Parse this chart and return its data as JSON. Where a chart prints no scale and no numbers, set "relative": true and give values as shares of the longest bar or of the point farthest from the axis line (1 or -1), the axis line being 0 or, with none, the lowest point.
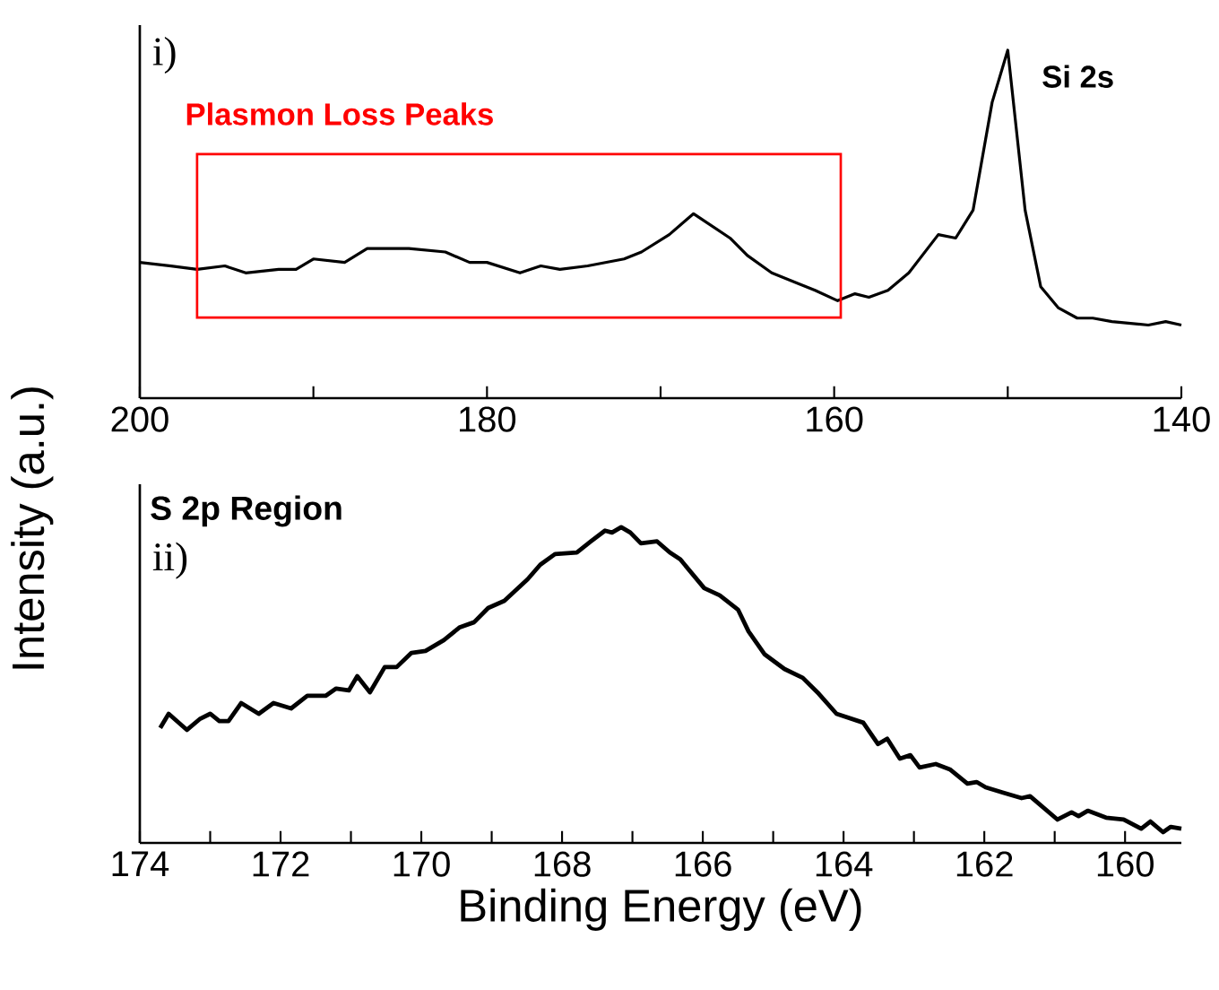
{
  "chart_data": [
    {
      "type": "line",
      "title": "i)",
      "ylabel": "Intensity (a.u.)",
      "relative": true,
      "color": "#000000",
      "tick_labels": "x",
      "annotations": [
        {
          "text": "Si 2s",
          "x": 150,
          "y": 1
        },
        "Plasmon Loss Peaks"
      ],
      "xlim": [
        200,
        140
      ],
      "xticks": [
        200,
        {
          "value": 190,
          "label": null
        },
        180,
        {
          "value": 170,
          "label": null
        },
        160,
        {
          "value": 150,
          "label": null
        },
        140
      ],
      "x": [
        200.0,
        198.2,
        196.7,
        195.1,
        193.9,
        192.0,
        191.0,
        190.0,
        188.2,
        186.9,
        184.5,
        182.4,
        181.0,
        180.0,
        178.1,
        176.9,
        175.8,
        174.2,
        172.1,
        171.1,
        169.5,
        168.1,
        166.0,
        165.0,
        163.6,
        162.1,
        161.1,
        159.8,
        158.8,
        158.0,
        156.9,
        155.7,
        154.0,
        153.0,
        152.0,
        150.9,
        150.0,
        149.0,
        148.1,
        147.1,
        146.0,
        145.1,
        144.0,
        141.9,
        140.9,
        140.0
      ],
      "values": [
        0.39,
        0.38,
        0.37,
        0.38,
        0.36,
        0.37,
        0.37,
        0.4,
        0.39,
        0.43,
        0.43,
        0.42,
        0.39,
        0.39,
        0.36,
        0.38,
        0.37,
        0.38,
        0.4,
        0.42,
        0.47,
        0.53,
        0.46,
        0.41,
        0.36,
        0.33,
        0.31,
        0.28,
        0.3,
        0.29,
        0.31,
        0.36,
        0.47,
        0.46,
        0.54,
        0.85,
        1.0,
        0.54,
        0.32,
        0.26,
        0.23,
        0.23,
        0.22,
        0.21,
        0.22,
        0.21
      ]
    },
    {
      "type": "line",
      "title": "ii)",
      "subtitle": "S 2p Region",
      "xlabel": "Binding Energy (eV)",
      "relative": true,
      "color": "#000000",
      "tick_labels": "x",
      "xlim": [
        174,
        159.2
      ],
      "xticks": [
        174,
        {
          "value": 173,
          "label": null
        },
        172,
        {
          "value": 171,
          "label": null
        },
        170,
        {
          "value": 169,
          "label": null
        },
        168,
        {
          "value": 167,
          "label": null
        },
        166,
        {
          "value": 165,
          "label": null
        },
        164,
        {
          "value": 163,
          "label": null
        },
        162,
        {
          "value": 161,
          "label": null
        },
        160
      ],
      "x": [
        173.71,
        173.59,
        173.33,
        173.15,
        173.0,
        172.87,
        172.74,
        172.56,
        172.31,
        172.1,
        171.85,
        171.62,
        171.36,
        171.21,
        171.03,
        170.91,
        170.73,
        170.52,
        170.35,
        170.14,
        169.94,
        169.68,
        169.46,
        169.25,
        169.05,
        168.82,
        168.49,
        168.31,
        168.1,
        167.79,
        167.59,
        167.39,
        167.29,
        167.16,
        167.03,
        166.88,
        166.65,
        166.47,
        166.32,
        165.98,
        165.76,
        165.5,
        165.35,
        165.12,
        164.84,
        164.58,
        164.35,
        164.1,
        163.72,
        163.51,
        163.38,
        163.2,
        163.05,
        162.92,
        162.69,
        162.49,
        162.24,
        162.11,
        161.98,
        161.73,
        161.47,
        161.35,
        160.96,
        160.76,
        160.66,
        160.53,
        160.27,
        160.02,
        159.77,
        159.64,
        159.46,
        159.35,
        159.2
      ],
      "values": [
        0.364,
        0.409,
        0.358,
        0.392,
        0.409,
        0.386,
        0.386,
        0.443,
        0.409,
        0.443,
        0.426,
        0.466,
        0.466,
        0.489,
        0.483,
        0.528,
        0.477,
        0.557,
        0.557,
        0.602,
        0.608,
        0.642,
        0.682,
        0.699,
        0.744,
        0.767,
        0.835,
        0.881,
        0.915,
        0.92,
        0.955,
        0.989,
        0.983,
        1.0,
        0.983,
        0.949,
        0.955,
        0.92,
        0.898,
        0.807,
        0.784,
        0.739,
        0.67,
        0.597,
        0.551,
        0.523,
        0.472,
        0.409,
        0.381,
        0.313,
        0.33,
        0.267,
        0.278,
        0.239,
        0.25,
        0.233,
        0.188,
        0.193,
        0.176,
        0.159,
        0.142,
        0.148,
        0.074,
        0.097,
        0.085,
        0.102,
        0.08,
        0.074,
        0.045,
        0.068,
        0.034,
        0.051,
        0.045
      ]
    }
  ]
}
